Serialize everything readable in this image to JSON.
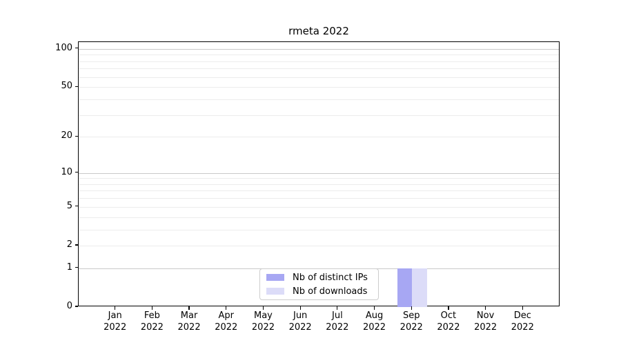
{
  "chart_data": {
    "type": "bar",
    "title": "rmeta 2022",
    "categories": [
      "Jan 2022",
      "Feb 2022",
      "Mar 2022",
      "Apr 2022",
      "May 2022",
      "Jun 2022",
      "Jul 2022",
      "Aug 2022",
      "Sep 2022",
      "Oct 2022",
      "Nov 2022",
      "Dec 2022"
    ],
    "series": [
      {
        "name": "Nb of distinct IPs",
        "color": "#a7a7f3",
        "values": [
          0,
          0,
          0,
          0,
          0,
          0,
          0,
          0,
          1,
          0,
          0,
          0
        ]
      },
      {
        "name": "Nb of downloads",
        "color": "#dcdcf8",
        "values": [
          0,
          0,
          0,
          0,
          0,
          0,
          0,
          0,
          1,
          0,
          0,
          0
        ]
      }
    ],
    "y_axis": {
      "scale": "log1p",
      "min": 0,
      "max": 113,
      "ticks": [
        0,
        1,
        2,
        5,
        10,
        20,
        50,
        100
      ],
      "major_gridlines": [
        1,
        10,
        100
      ],
      "minor_gridlines": [
        2,
        3,
        4,
        5,
        6,
        7,
        8,
        9,
        20,
        30,
        40,
        50,
        60,
        70,
        80,
        90
      ]
    },
    "x_axis": {
      "label_lines": 2
    },
    "bar_width_frac": 0.4,
    "legend": {
      "position": "bottom-center",
      "border_color": "#cccccc"
    },
    "colors": {
      "grid_major": "#c9c9c9",
      "grid_minor": "#ececec",
      "axis": "#000000",
      "text": "#000000",
      "background": "#ffffff"
    }
  }
}
